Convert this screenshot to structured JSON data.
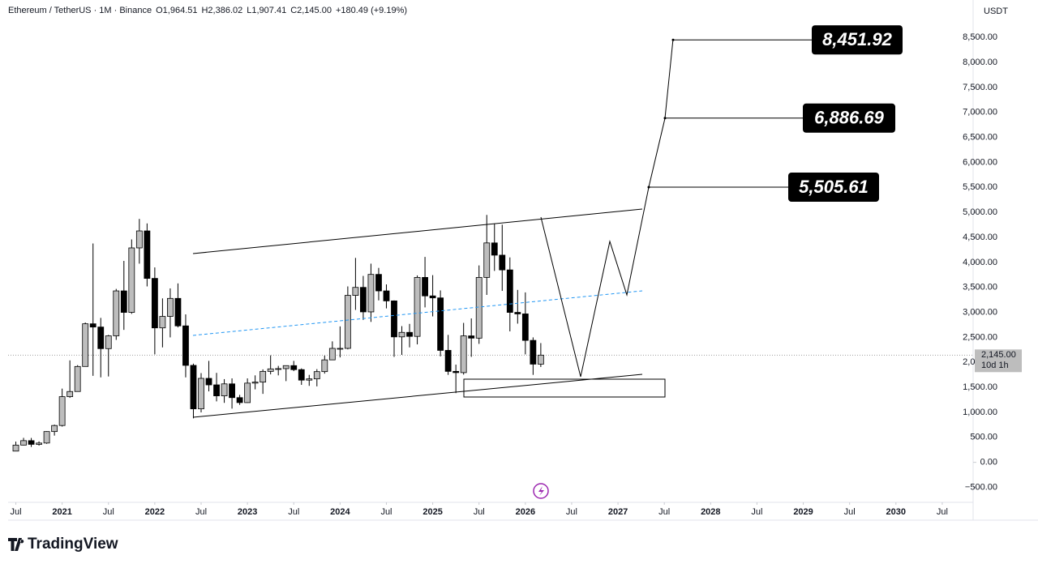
{
  "chart_data": {
    "type": "candlestick",
    "header": [
      "Ethereum / TetherUS · 1M · Binance",
      "O1,964.51",
      "H2,386.02",
      "L1,907.41",
      "C2,145.00",
      "+180.49 (+9.19%)"
    ],
    "currency": "USDT",
    "up_color": "#bdbdbd",
    "down_color": "#000000",
    "wick_color": "#000000",
    "candles": [
      {
        "x": "2020-07",
        "o": 225,
        "h": 415,
        "l": 222,
        "c": 345
      },
      {
        "x": "2020-08",
        "o": 345,
        "h": 490,
        "l": 340,
        "c": 434
      },
      {
        "x": "2020-09",
        "o": 434,
        "h": 488,
        "l": 308,
        "c": 360
      },
      {
        "x": "2020-10",
        "o": 360,
        "h": 420,
        "l": 335,
        "c": 386
      },
      {
        "x": "2020-11",
        "o": 386,
        "h": 622,
        "l": 370,
        "c": 616
      },
      {
        "x": "2020-12",
        "o": 616,
        "h": 755,
        "l": 535,
        "c": 737
      },
      {
        "x": "2021-01",
        "o": 737,
        "h": 1475,
        "l": 715,
        "c": 1314
      },
      {
        "x": "2021-02",
        "o": 1314,
        "h": 2040,
        "l": 1290,
        "c": 1417
      },
      {
        "x": "2021-03",
        "o": 1417,
        "h": 1945,
        "l": 1440,
        "c": 1918
      },
      {
        "x": "2021-04",
        "o": 1918,
        "h": 2797,
        "l": 1930,
        "c": 2772
      },
      {
        "x": "2021-05",
        "o": 2772,
        "h": 4380,
        "l": 1730,
        "c": 2707
      },
      {
        "x": "2021-06",
        "o": 2707,
        "h": 2890,
        "l": 1700,
        "c": 2275
      },
      {
        "x": "2021-07",
        "o": 2275,
        "h": 2550,
        "l": 1718,
        "c": 2531
      },
      {
        "x": "2021-08",
        "o": 2531,
        "h": 3470,
        "l": 2450,
        "c": 3430
      },
      {
        "x": "2021-09",
        "o": 3430,
        "h": 4030,
        "l": 2650,
        "c": 3000
      },
      {
        "x": "2021-10",
        "o": 3000,
        "h": 4460,
        "l": 2970,
        "c": 4290
      },
      {
        "x": "2021-11",
        "o": 4290,
        "h": 4870,
        "l": 3975,
        "c": 4630
      },
      {
        "x": "2021-12",
        "o": 4630,
        "h": 4780,
        "l": 3520,
        "c": 3680
      },
      {
        "x": "2022-01",
        "o": 3680,
        "h": 3900,
        "l": 2160,
        "c": 2690
      },
      {
        "x": "2022-02",
        "o": 2690,
        "h": 3280,
        "l": 2300,
        "c": 2920
      },
      {
        "x": "2022-03",
        "o": 2920,
        "h": 3480,
        "l": 2500,
        "c": 3280
      },
      {
        "x": "2022-04",
        "o": 3280,
        "h": 3580,
        "l": 2700,
        "c": 2730
      },
      {
        "x": "2022-05",
        "o": 2730,
        "h": 2960,
        "l": 1700,
        "c": 1940
      },
      {
        "x": "2022-06",
        "o": 1940,
        "h": 1975,
        "l": 880,
        "c": 1070
      },
      {
        "x": "2022-07",
        "o": 1070,
        "h": 1785,
        "l": 1000,
        "c": 1680
      },
      {
        "x": "2022-08",
        "o": 1680,
        "h": 2030,
        "l": 1420,
        "c": 1550
      },
      {
        "x": "2022-09",
        "o": 1550,
        "h": 1790,
        "l": 1220,
        "c": 1330
      },
      {
        "x": "2022-10",
        "o": 1330,
        "h": 1665,
        "l": 1190,
        "c": 1570
      },
      {
        "x": "2022-11",
        "o": 1570,
        "h": 1680,
        "l": 1075,
        "c": 1295
      },
      {
        "x": "2022-12",
        "o": 1295,
        "h": 1350,
        "l": 1150,
        "c": 1195
      },
      {
        "x": "2023-01",
        "o": 1195,
        "h": 1680,
        "l": 1190,
        "c": 1585
      },
      {
        "x": "2023-02",
        "o": 1585,
        "h": 1740,
        "l": 1460,
        "c": 1605
      },
      {
        "x": "2023-03",
        "o": 1605,
        "h": 1860,
        "l": 1370,
        "c": 1820
      },
      {
        "x": "2023-04",
        "o": 1820,
        "h": 2140,
        "l": 1760,
        "c": 1870
      },
      {
        "x": "2023-05",
        "o": 1870,
        "h": 1930,
        "l": 1740,
        "c": 1875
      },
      {
        "x": "2023-06",
        "o": 1875,
        "h": 1930,
        "l": 1625,
        "c": 1935
      },
      {
        "x": "2023-07",
        "o": 1935,
        "h": 2030,
        "l": 1825,
        "c": 1855
      },
      {
        "x": "2023-08",
        "o": 1855,
        "h": 1880,
        "l": 1550,
        "c": 1645
      },
      {
        "x": "2023-09",
        "o": 1645,
        "h": 1750,
        "l": 1530,
        "c": 1670
      },
      {
        "x": "2023-10",
        "o": 1670,
        "h": 1865,
        "l": 1520,
        "c": 1815
      },
      {
        "x": "2023-11",
        "o": 1815,
        "h": 2135,
        "l": 1775,
        "c": 2050
      },
      {
        "x": "2023-12",
        "o": 2050,
        "h": 2420,
        "l": 2050,
        "c": 2280
      },
      {
        "x": "2024-01",
        "o": 2280,
        "h": 2720,
        "l": 2100,
        "c": 2280
      },
      {
        "x": "2024-02",
        "o": 2280,
        "h": 3520,
        "l": 2260,
        "c": 3340
      },
      {
        "x": "2024-03",
        "o": 3340,
        "h": 4090,
        "l": 3050,
        "c": 3500
      },
      {
        "x": "2024-04",
        "o": 3500,
        "h": 3730,
        "l": 2850,
        "c": 3010
      },
      {
        "x": "2024-05",
        "o": 3010,
        "h": 3975,
        "l": 2810,
        "c": 3760
      },
      {
        "x": "2024-06",
        "o": 3760,
        "h": 3890,
        "l": 3240,
        "c": 3430
      },
      {
        "x": "2024-07",
        "o": 3430,
        "h": 3560,
        "l": 3080,
        "c": 3230
      },
      {
        "x": "2024-08",
        "o": 3230,
        "h": 3240,
        "l": 2110,
        "c": 2510
      },
      {
        "x": "2024-09",
        "o": 2510,
        "h": 2725,
        "l": 2150,
        "c": 2600
      },
      {
        "x": "2024-10",
        "o": 2600,
        "h": 2770,
        "l": 2300,
        "c": 2520
      },
      {
        "x": "2024-11",
        "o": 2520,
        "h": 3740,
        "l": 2360,
        "c": 3700
      },
      {
        "x": "2024-12",
        "o": 3700,
        "h": 4110,
        "l": 3100,
        "c": 3330
      },
      {
        "x": "2025-01",
        "o": 3330,
        "h": 3745,
        "l": 2920,
        "c": 3290
      },
      {
        "x": "2025-02",
        "o": 3290,
        "h": 3440,
        "l": 2120,
        "c": 2240
      },
      {
        "x": "2025-03",
        "o": 2240,
        "h": 2550,
        "l": 1750,
        "c": 1820
      },
      {
        "x": "2025-04",
        "o": 1820,
        "h": 1955,
        "l": 1385,
        "c": 1795
      },
      {
        "x": "2025-05",
        "o": 1795,
        "h": 2790,
        "l": 1755,
        "c": 2530
      },
      {
        "x": "2025-06",
        "o": 2530,
        "h": 2880,
        "l": 2110,
        "c": 2485
      },
      {
        "x": "2025-07",
        "o": 2485,
        "h": 3940,
        "l": 2370,
        "c": 3700
      },
      {
        "x": "2025-08",
        "o": 3700,
        "h": 4950,
        "l": 3350,
        "c": 4390
      },
      {
        "x": "2025-09",
        "o": 4390,
        "h": 4770,
        "l": 3830,
        "c": 4145
      },
      {
        "x": "2025-10",
        "o": 4145,
        "h": 4755,
        "l": 3430,
        "c": 3850
      },
      {
        "x": "2025-11",
        "o": 3850,
        "h": 4100,
        "l": 2620,
        "c": 3000
      },
      {
        "x": "2025-12",
        "o": 3000,
        "h": 3450,
        "l": 2775,
        "c": 2970
      },
      {
        "x": "2026-01",
        "o": 2970,
        "h": 3400,
        "l": 2160,
        "c": 2440
      },
      {
        "x": "2026-02",
        "o": 2440,
        "h": 2500,
        "l": 1750,
        "c": 1964.51
      },
      {
        "x": "2026-03",
        "o": 1964.51,
        "h": 2386.02,
        "l": 1907.41,
        "c": 2145.0
      }
    ],
    "xlim": [
      "2020-06",
      "2030-11"
    ],
    "xticks": [
      {
        "value": "2020-07",
        "label": "Jul"
      },
      {
        "value": "2021-01",
        "label": "2021"
      },
      {
        "value": "2021-07",
        "label": "Jul"
      },
      {
        "value": "2022-01",
        "label": "2022"
      },
      {
        "value": "2022-07",
        "label": "Jul"
      },
      {
        "value": "2023-01",
        "label": "2023"
      },
      {
        "value": "2023-07",
        "label": "Jul"
      },
      {
        "value": "2024-01",
        "label": "2024"
      },
      {
        "value": "2024-07",
        "label": "Jul"
      },
      {
        "value": "2025-01",
        "label": "2025"
      },
      {
        "value": "2025-07",
        "label": "Jul"
      },
      {
        "value": "2026-01",
        "label": "2026"
      },
      {
        "value": "2026-07",
        "label": "Jul"
      },
      {
        "value": "2027-01",
        "label": "2027"
      },
      {
        "value": "2027-07",
        "label": "Jul"
      },
      {
        "value": "2028-01",
        "label": "2028"
      },
      {
        "value": "2028-07",
        "label": "Jul"
      },
      {
        "value": "2029-01",
        "label": "2029"
      },
      {
        "value": "2029-07",
        "label": "Jul"
      },
      {
        "value": "2030-01",
        "label": "2030"
      },
      {
        "value": "2030-07",
        "label": "Jul"
      }
    ],
    "ylim": [
      -800,
      9250
    ],
    "yticks": [
      {
        "value": -500,
        "label": "−500.00"
      },
      {
        "value": 0,
        "label": "0.00"
      },
      {
        "value": 500,
        "label": "500.00"
      },
      {
        "value": 1000,
        "label": "1,000.00"
      },
      {
        "value": 1500,
        "label": "1,500.00"
      },
      {
        "value": 2000,
        "label": "2,000.00"
      },
      {
        "value": 2500,
        "label": "2,500.00"
      },
      {
        "value": 3000,
        "label": "3,000.00"
      },
      {
        "value": 3500,
        "label": "3,500.00"
      },
      {
        "value": 4000,
        "label": "4,000.00"
      },
      {
        "value": 4500,
        "label": "4,500.00"
      },
      {
        "value": 5000,
        "label": "5,000.00"
      },
      {
        "value": 5500,
        "label": "5,500.00"
      },
      {
        "value": 6000,
        "label": "6,000.00"
      },
      {
        "value": 6500,
        "label": "6,500.00"
      },
      {
        "value": 7000,
        "label": "7,000.00"
      },
      {
        "value": 7500,
        "label": "7,500.00"
      },
      {
        "value": 8000,
        "label": "8,000.00"
      },
      {
        "value": 8500,
        "label": "8,500.00"
      }
    ],
    "last_price": {
      "value": 2145.0,
      "label": "2,145.00"
    },
    "countdown": "10d 1h",
    "targets": [
      {
        "value": 8451.92,
        "label": "8,451.92"
      },
      {
        "value": 6886.69,
        "label": "6,886.69"
      },
      {
        "value": 5505.61,
        "label": "5,505.61"
      }
    ],
    "brand": "TradingView"
  }
}
